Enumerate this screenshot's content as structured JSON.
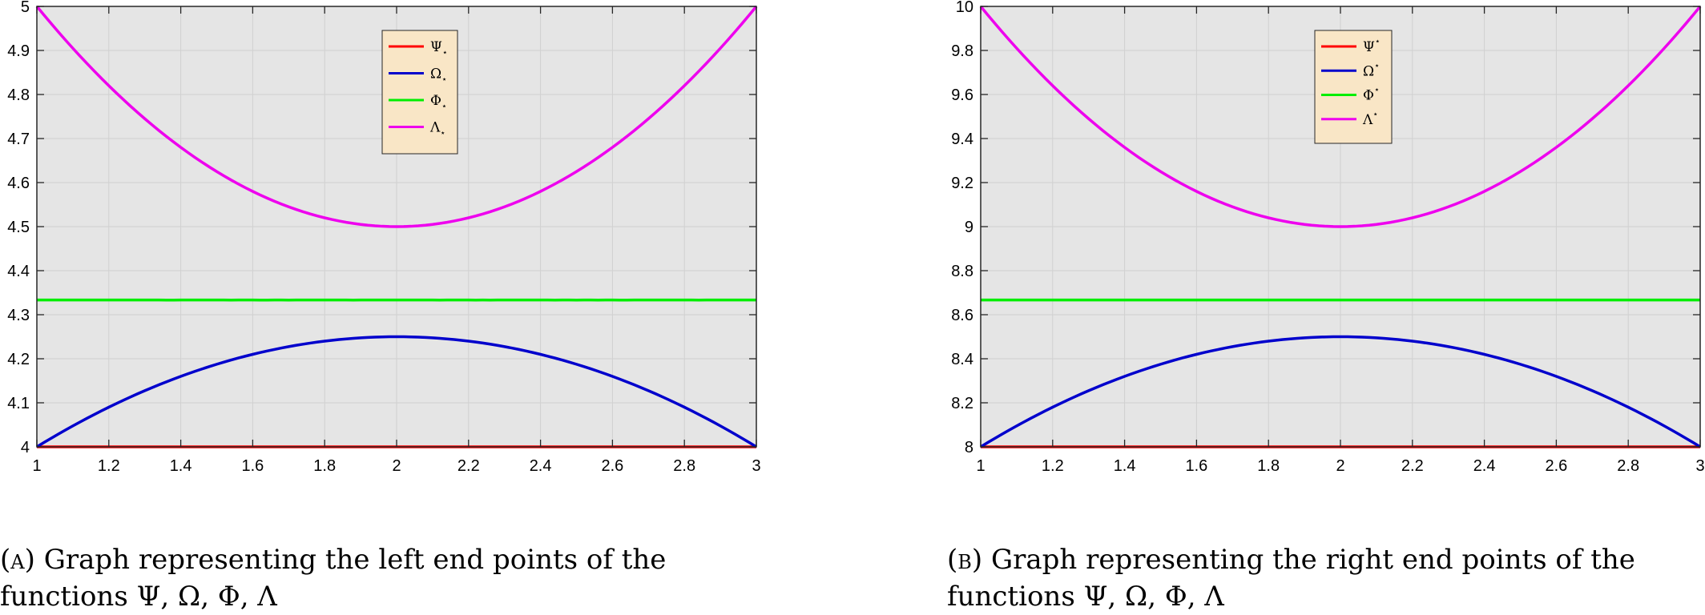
{
  "chart_data": [
    {
      "type": "line",
      "xlim": [
        1,
        3
      ],
      "ylim": [
        4,
        5
      ],
      "x_ticks": [
        "1",
        "1.2",
        "1.4",
        "1.6",
        "1.8",
        "2",
        "2.2",
        "2.4",
        "2.6",
        "2.8",
        "3"
      ],
      "y_ticks": [
        "4",
        "4.1",
        "4.2",
        "4.3",
        "4.4",
        "4.5",
        "4.6",
        "4.7",
        "4.8",
        "4.9",
        "5"
      ],
      "grid": true,
      "legend_position": "top-center",
      "series": [
        {
          "name": "Ψ⋆",
          "base": "Ψ",
          "mod": "⋆",
          "mod_pos": "sub",
          "color": "#ff0000",
          "x": [
            1,
            1.5,
            2,
            2.5,
            3
          ],
          "values": [
            4,
            4,
            4,
            4,
            4
          ]
        },
        {
          "name": "Ω⋆",
          "base": "Ω",
          "mod": "⋆",
          "mod_pos": "sub",
          "color": "#0000cc",
          "x": [
            1,
            1.5,
            2,
            2.5,
            3
          ],
          "values": [
            4,
            4.1875,
            4.25,
            4.1875,
            4
          ]
        },
        {
          "name": "Φ⋆",
          "base": "Φ",
          "mod": "⋆",
          "mod_pos": "sub",
          "color": "#00ee00",
          "x": [
            1,
            1.5,
            2,
            2.5,
            3
          ],
          "values": [
            4.3333,
            4.3333,
            4.3333,
            4.3333,
            4.3333
          ]
        },
        {
          "name": "Λ⋆",
          "base": "Λ",
          "mod": "⋆",
          "mod_pos": "sub",
          "color": "#ee00ee",
          "x": [
            1,
            1.5,
            2,
            2.5,
            3
          ],
          "values": [
            5,
            4.625,
            4.5,
            4.625,
            5
          ]
        }
      ]
    },
    {
      "type": "line",
      "xlim": [
        1,
        3
      ],
      "ylim": [
        8,
        10
      ],
      "x_ticks": [
        "1",
        "1.2",
        "1.4",
        "1.6",
        "1.8",
        "2",
        "2.2",
        "2.4",
        "2.6",
        "2.8",
        "3"
      ],
      "y_ticks": [
        "8",
        "8.2",
        "8.4",
        "8.6",
        "8.8",
        "9",
        "9.2",
        "9.4",
        "9.6",
        "9.8",
        "10"
      ],
      "grid": true,
      "legend_position": "top-center",
      "series": [
        {
          "name": "Ψ⋆",
          "base": "Ψ",
          "mod": "⋆",
          "mod_pos": "sup",
          "color": "#ff0000",
          "x": [
            1,
            1.5,
            2,
            2.5,
            3
          ],
          "values": [
            8,
            8,
            8,
            8,
            8
          ]
        },
        {
          "name": "Ω⋆",
          "base": "Ω",
          "mod": "⋆",
          "mod_pos": "sup",
          "color": "#0000cc",
          "x": [
            1,
            1.5,
            2,
            2.5,
            3
          ],
          "values": [
            8,
            8.375,
            8.5,
            8.375,
            8
          ]
        },
        {
          "name": "Φ⋆",
          "base": "Φ",
          "mod": "⋆",
          "mod_pos": "sup",
          "color": "#00ee00",
          "x": [
            1,
            1.5,
            2,
            2.5,
            3
          ],
          "values": [
            8.6667,
            8.6667,
            8.6667,
            8.6667,
            8.6667
          ]
        },
        {
          "name": "Λ⋆",
          "base": "Λ",
          "mod": "⋆",
          "mod_pos": "sup",
          "color": "#ee00ee",
          "x": [
            1,
            1.5,
            2,
            2.5,
            3
          ],
          "values": [
            10,
            9.25,
            9,
            9.25,
            10
          ]
        }
      ]
    }
  ],
  "captions": [
    {
      "tag": "(a)",
      "line1": "Graph representing the left end points of the",
      "line2": "functions Ψ, Ω, Φ, Λ"
    },
    {
      "tag": "(b)",
      "line1": "Graph representing the right end points of the",
      "line2": "functions Ψ, Ω, Φ, Λ"
    }
  ],
  "colors": {
    "plot_background": "#e5e5e5",
    "grid": "#d0d0d0",
    "legend_background": "#f9e6c6"
  }
}
